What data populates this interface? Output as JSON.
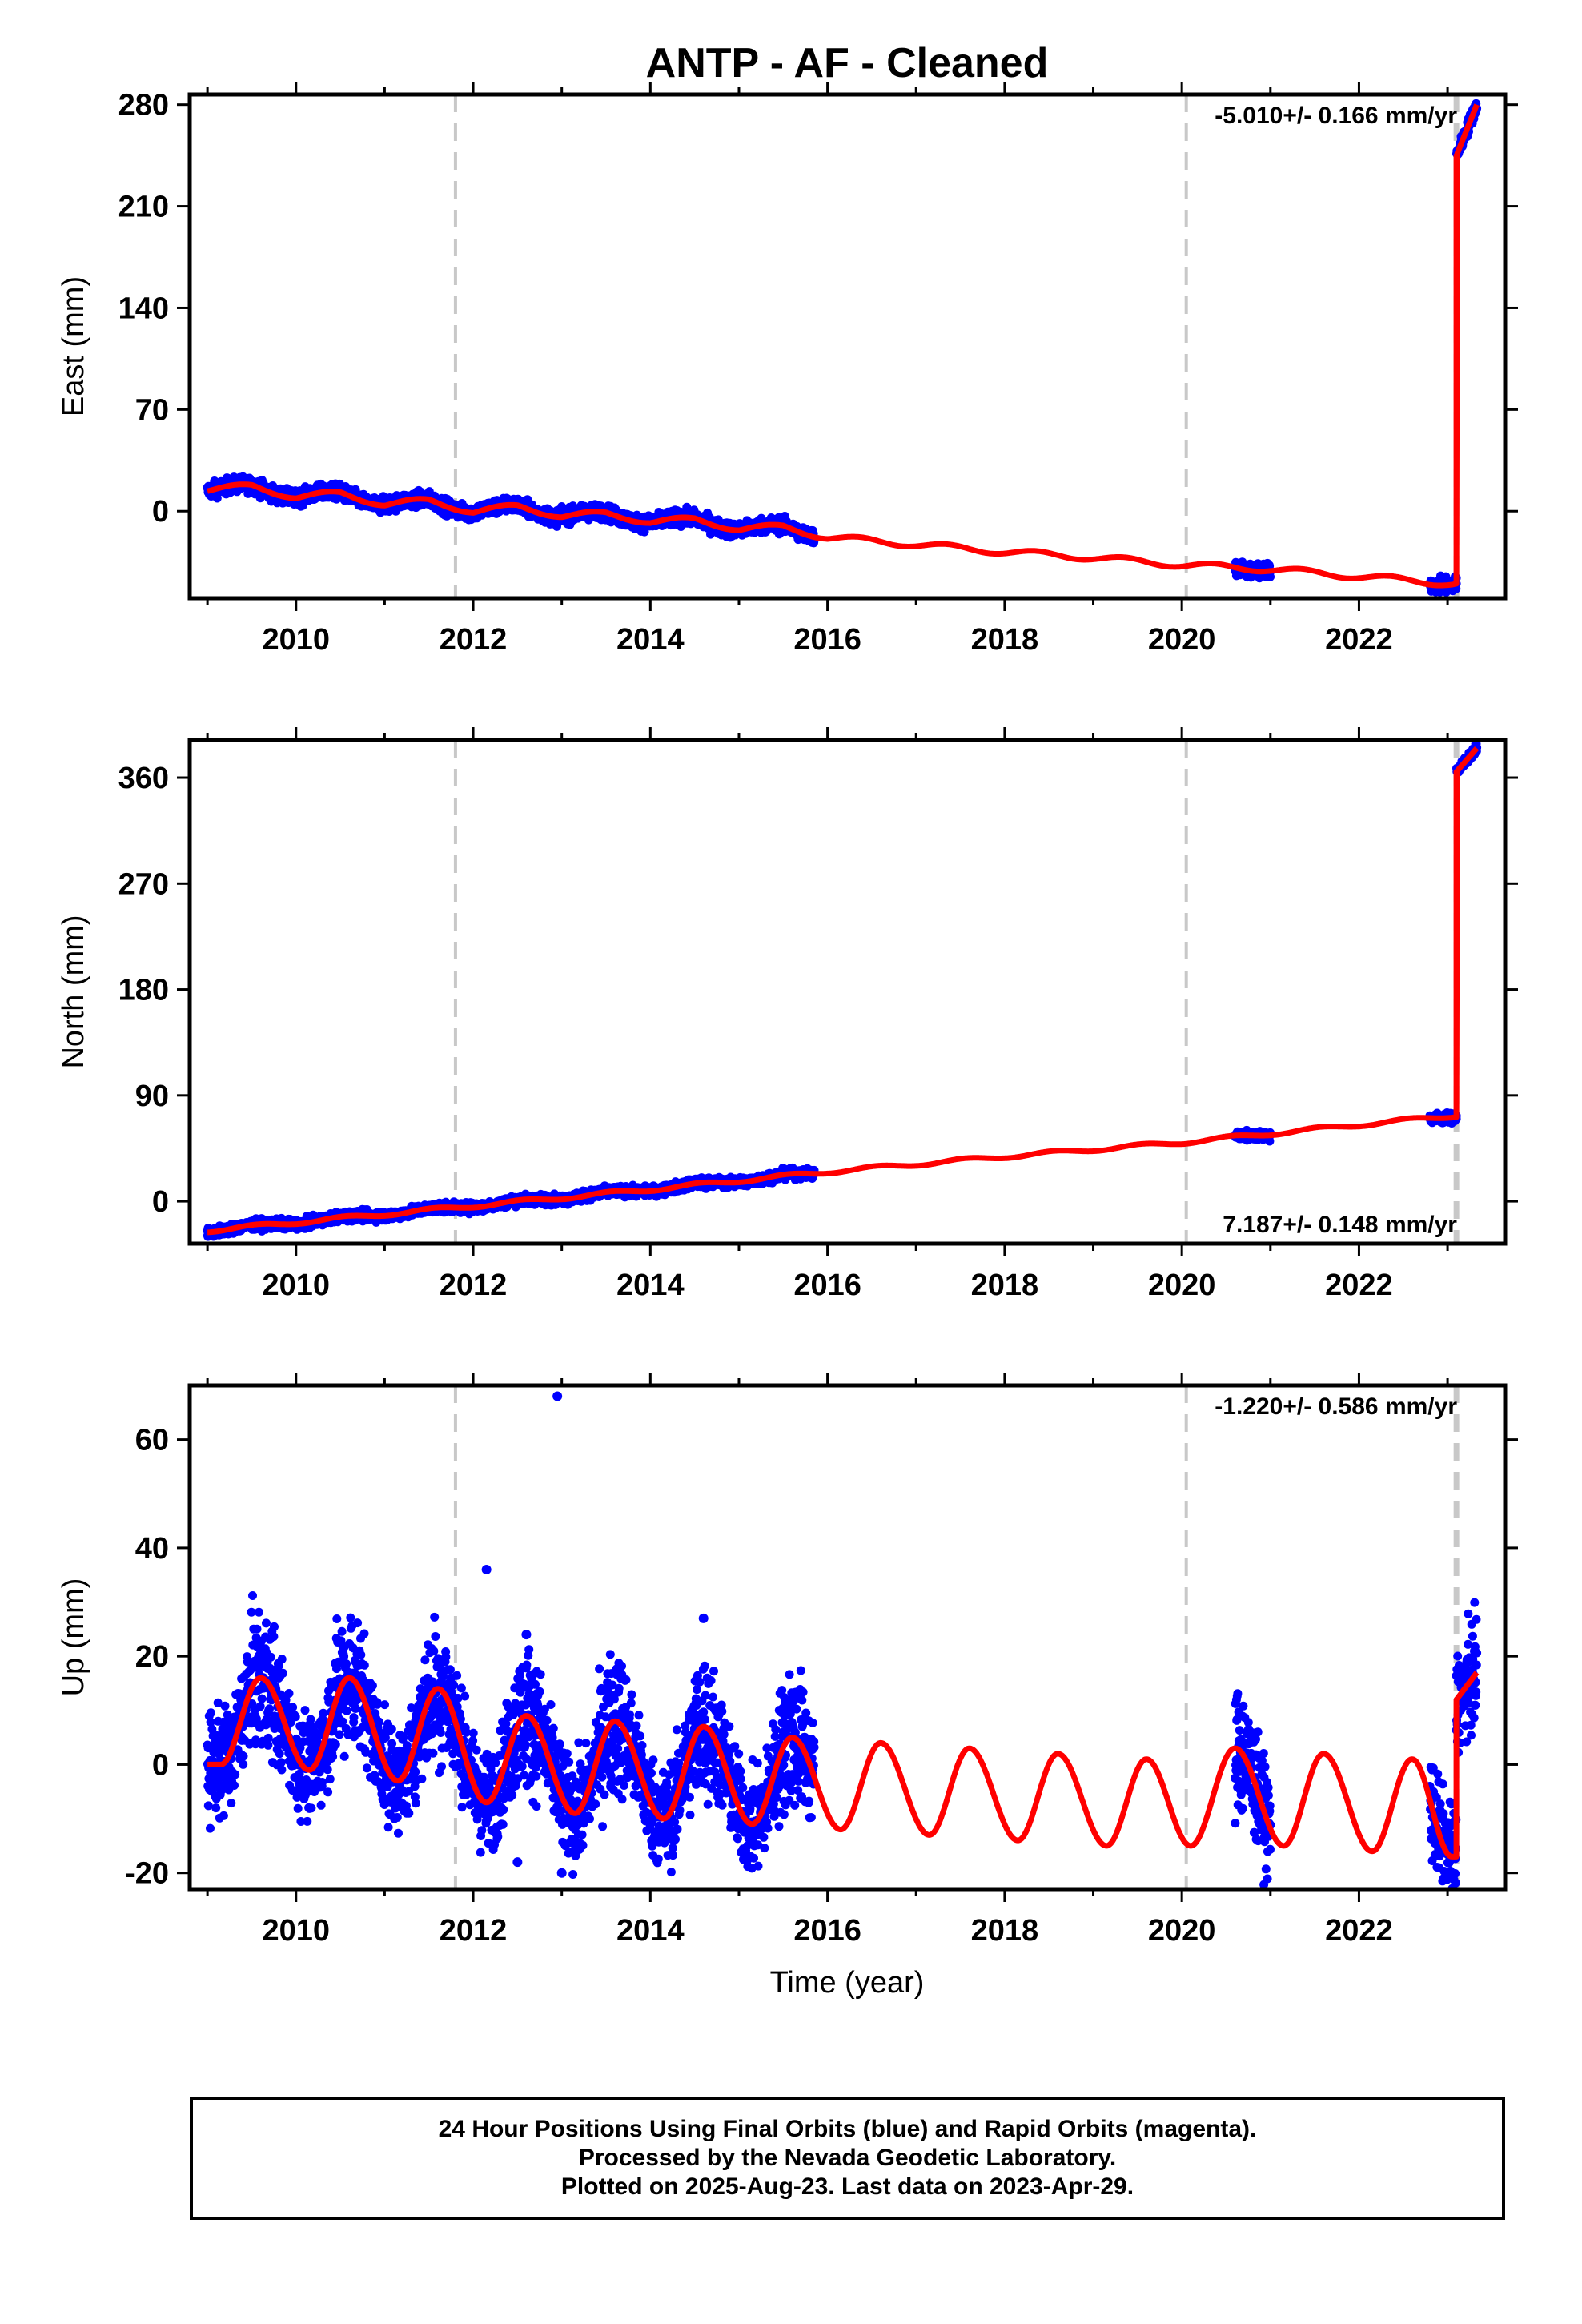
{
  "title": "ANTP  - AF - Cleaned",
  "xlabel": "Time (year)",
  "caption": [
    "24 Hour Positions Using Final Orbits (blue) and Rapid Orbits (magenta).",
    "Processed by the Nevada Geodetic Laboratory.",
    "Plotted on 2025-Aug-23. Last data on 2023-Apr-29."
  ],
  "colors": {
    "final_orbits": "#0000ff",
    "model": "#ff0000",
    "reference_lines": "#c8c8c8",
    "frame": "#000000"
  },
  "chart_data": [
    {
      "type": "scatter",
      "ylabel": "East (mm)",
      "xlim": [
        2008.8,
        2023.65
      ],
      "ylim": [
        -60,
        287
      ],
      "x_ticks": [
        2010,
        2012,
        2014,
        2016,
        2018,
        2020,
        2022
      ],
      "y_ticks": [
        0,
        70,
        140,
        210,
        280
      ],
      "rate_label": "-5.010+/- 0.166 mm/yr",
      "rate_label_position": "top-right",
      "equipment_change_lines": [
        2011.8,
        2020.05
      ],
      "offset_lines": [
        2023.1
      ],
      "rate_mm_per_yr": -5.01,
      "series": [
        {
          "name": "Final Orbits (blue)",
          "color": "#0000ff",
          "segments": [
            {
              "x": [
                2009.0,
                2015.85
              ]
            },
            {
              "x": [
                2020.6,
                2021.0
              ]
            },
            {
              "x": [
                2022.8,
                2023.1
              ]
            },
            {
              "x": [
                2023.1,
                2023.33
              ]
            }
          ]
        },
        {
          "name": "model",
          "color": "#ff0000",
          "anchors": [
            [
              2009.0,
              15
            ],
            [
              2009.5,
              17
            ],
            [
              2010.0,
              10
            ],
            [
              2010.5,
              12
            ],
            [
              2011.0,
              5
            ],
            [
              2011.5,
              7
            ],
            [
              2012.0,
              0
            ],
            [
              2012.5,
              3
            ],
            [
              2013.0,
              -3
            ],
            [
              2013.5,
              -2
            ],
            [
              2014.0,
              -7
            ],
            [
              2014.5,
              -6
            ],
            [
              2015.0,
              -12
            ],
            [
              2015.5,
              -11
            ],
            [
              2016.0,
              -18
            ],
            [
              2017.0,
              -23
            ],
            [
              2018.0,
              -28
            ],
            [
              2019.0,
              -32
            ],
            [
              2020.0,
              -37
            ],
            [
              2021.0,
              -40
            ],
            [
              2022.0,
              -45
            ],
            [
              2023.05,
              -50
            ],
            [
              2023.1,
              -50
            ],
            [
              2023.1,
              245
            ],
            [
              2023.33,
              280
            ]
          ]
        }
      ],
      "annual_amplitude_mm": 2,
      "noise_mm": 2.5
    },
    {
      "type": "scatter",
      "ylabel": "North (mm)",
      "xlim": [
        2008.8,
        2023.65
      ],
      "ylim": [
        -36,
        392
      ],
      "x_ticks": [
        2010,
        2012,
        2014,
        2016,
        2018,
        2020,
        2022
      ],
      "y_ticks": [
        0,
        90,
        180,
        270,
        360
      ],
      "rate_label": "7.187+/- 0.148 mm/yr",
      "rate_label_position": "bottom-right",
      "equipment_change_lines": [
        2011.8,
        2020.05
      ],
      "offset_lines": [
        2023.1
      ],
      "rate_mm_per_yr": 7.187,
      "series": [
        {
          "name": "Final Orbits (blue)",
          "color": "#0000ff",
          "segments": [
            {
              "x": [
                2009.0,
                2015.85
              ]
            },
            {
              "x": [
                2020.6,
                2021.0
              ]
            },
            {
              "x": [
                2022.8,
                2023.1
              ]
            },
            {
              "x": [
                2023.1,
                2023.33
              ]
            }
          ]
        },
        {
          "name": "model",
          "color": "#ff0000",
          "anchors": [
            [
              2009.0,
              -25
            ],
            [
              2012.0,
              -4
            ],
            [
              2014.0,
              10
            ],
            [
              2016.0,
              25
            ],
            [
              2018.0,
              38
            ],
            [
              2020.0,
              50
            ],
            [
              2022.0,
              65
            ],
            [
              2023.1,
              73
            ],
            [
              2023.1,
              365
            ],
            [
              2023.33,
              385
            ]
          ]
        }
      ],
      "annual_amplitude_mm": 1.5,
      "noise_mm": 2
    },
    {
      "type": "scatter",
      "ylabel": "Up (mm)",
      "xlim": [
        2008.8,
        2023.65
      ],
      "ylim": [
        -23,
        70
      ],
      "x_ticks": [
        2010,
        2012,
        2014,
        2016,
        2018,
        2020,
        2022
      ],
      "y_ticks": [
        -20,
        0,
        20,
        40,
        60
      ],
      "rate_label": "-1.220+/- 0.586 mm/yr",
      "rate_label_position": "top-right",
      "equipment_change_lines": [
        2011.8,
        2020.05
      ],
      "offset_lines": [
        2023.1
      ],
      "rate_mm_per_yr": -1.22,
      "series": [
        {
          "name": "Final Orbits (blue)",
          "color": "#0000ff",
          "segments": [
            {
              "x": [
                2009.0,
                2015.85
              ]
            },
            {
              "x": [
                2020.6,
                2021.0
              ]
            },
            {
              "x": [
                2022.8,
                2023.1
              ]
            },
            {
              "x": [
                2023.1,
                2023.33
              ]
            }
          ]
        },
        {
          "name": "model",
          "color": "#ff0000",
          "seasonal_peaks": [
            [
              2009.6,
              16
            ],
            [
              2010.6,
              16
            ],
            [
              2011.6,
              14
            ],
            [
              2012.6,
              9
            ],
            [
              2013.6,
              8
            ],
            [
              2014.6,
              7
            ],
            [
              2015.6,
              5
            ],
            [
              2016.6,
              4
            ],
            [
              2017.6,
              3
            ],
            [
              2018.6,
              2
            ],
            [
              2019.6,
              1
            ],
            [
              2020.6,
              3
            ],
            [
              2021.6,
              2
            ],
            [
              2022.6,
              1
            ]
          ],
          "seasonal_troughs": [
            [
              2009.15,
              0
            ],
            [
              2010.15,
              -1
            ],
            [
              2011.15,
              -3
            ],
            [
              2012.15,
              -7
            ],
            [
              2013.15,
              -9
            ],
            [
              2014.15,
              -10
            ],
            [
              2015.15,
              -11
            ],
            [
              2016.15,
              -12
            ],
            [
              2017.15,
              -13
            ],
            [
              2018.15,
              -14
            ],
            [
              2019.15,
              -15
            ],
            [
              2020.1,
              -15
            ],
            [
              2021.15,
              -15
            ],
            [
              2022.15,
              -16
            ],
            [
              2023.05,
              -17
            ]
          ],
          "after_offset": [
            [
              2023.1,
              12
            ],
            [
              2023.33,
              17
            ]
          ]
        }
      ],
      "noise_mm": 4.5,
      "outliers": [
        [
          2012.95,
          68
        ],
        [
          2012.15,
          36
        ],
        [
          2012.6,
          24
        ],
        [
          2014.6,
          27
        ],
        [
          2012.5,
          -18
        ],
        [
          2013.0,
          -20
        ]
      ]
    }
  ]
}
